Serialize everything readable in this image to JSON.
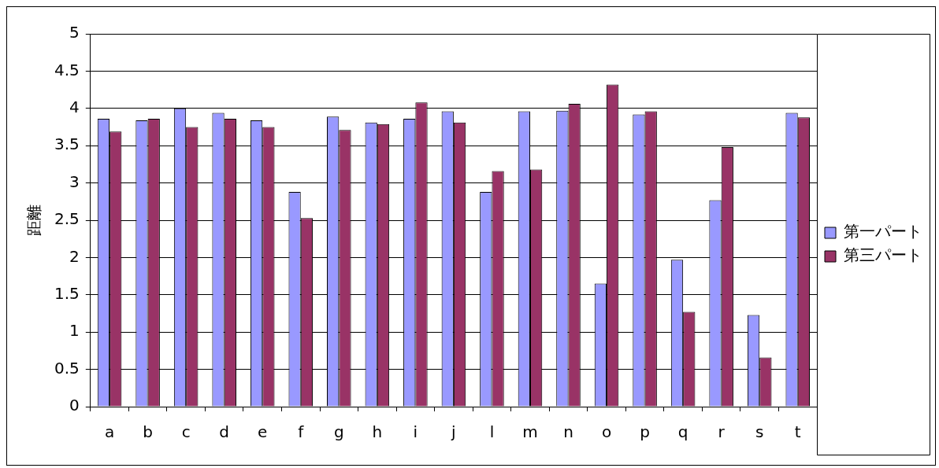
{
  "chart_data": {
    "type": "bar",
    "ylabel": "距離",
    "categories": [
      "a",
      "b",
      "c",
      "d",
      "e",
      "f",
      "g",
      "h",
      "i",
      "j",
      "l",
      "m",
      "n",
      "o",
      "p",
      "q",
      "r",
      "s",
      "t"
    ],
    "series": [
      {
        "name": "第一パート",
        "color": "#9999ff",
        "values": [
          3.86,
          3.84,
          4.0,
          3.94,
          3.84,
          2.88,
          3.89,
          3.81,
          3.86,
          3.96,
          2.88,
          3.96,
          3.97,
          1.65,
          3.92,
          1.97,
          2.77,
          1.23,
          3.94
        ]
      },
      {
        "name": "第三パート",
        "color": "#993366",
        "values": [
          3.69,
          3.86,
          3.75,
          3.86,
          3.75,
          2.53,
          3.71,
          3.79,
          4.08,
          3.81,
          3.16,
          3.18,
          4.06,
          4.32,
          3.96,
          1.27,
          3.48,
          0.66,
          3.88
        ]
      }
    ],
    "ylim": [
      0,
      5
    ],
    "yticks": [
      0,
      0.5,
      1,
      1.5,
      2,
      2.5,
      3,
      3.5,
      4,
      4.5,
      5
    ],
    "grid": "y",
    "legend": "right"
  }
}
